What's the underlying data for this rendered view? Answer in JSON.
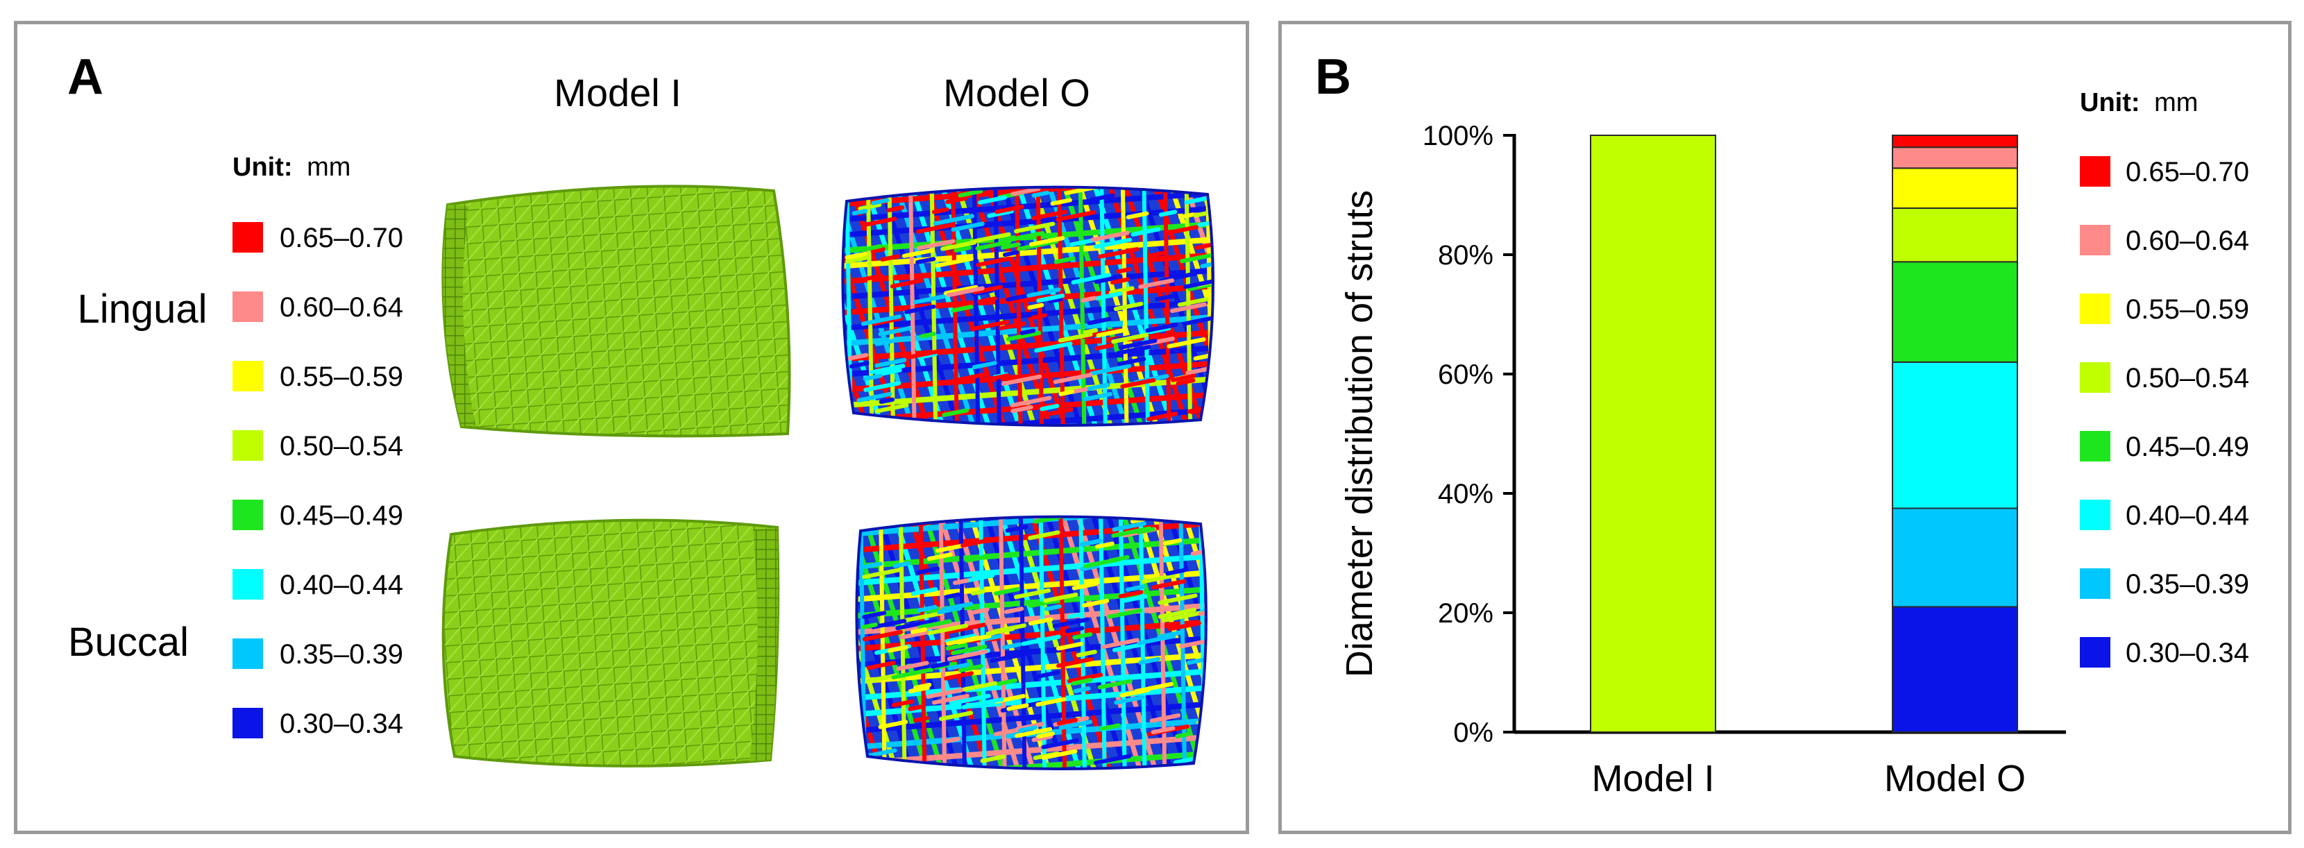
{
  "panel_a": {
    "letter": "A",
    "col_labels": [
      "Model I",
      "Model O"
    ],
    "row_labels": [
      "Lingual",
      "Buccal"
    ],
    "unit_label": "Unit:",
    "unit_value": "mm",
    "legend": [
      {
        "label": "0.65–0.70",
        "color": "#ff0000"
      },
      {
        "label": "0.60–0.64",
        "color": "#ff8a8a"
      },
      {
        "label": "0.55–0.59",
        "color": "#ffff00"
      },
      {
        "label": "0.50–0.54",
        "color": "#bfff00"
      },
      {
        "label": "0.45–0.49",
        "color": "#1ee61e"
      },
      {
        "label": "0.40–0.44",
        "color": "#00ffff"
      },
      {
        "label": "0.35–0.39",
        "color": "#00c8ff"
      },
      {
        "label": "0.30–0.34",
        "color": "#0a14e6"
      }
    ],
    "model_i_color": "#8ccf1a",
    "model_o_colors": [
      "#0a14e6",
      "#00c8ff",
      "#00ffff",
      "#1ee61e",
      "#bfff00",
      "#ffff00",
      "#ff8a8a",
      "#ff0000"
    ]
  },
  "panel_b": {
    "letter": "B",
    "unit_label": "Unit:",
    "unit_value": "mm"
  },
  "chart_data": {
    "type": "bar",
    "stacked": true,
    "categories": [
      "Model I",
      "Model O"
    ],
    "ylabel": "Diameter distribution of struts",
    "xlabel": "",
    "ylim": [
      0,
      100
    ],
    "yticks": [
      0,
      20,
      40,
      60,
      80,
      100
    ],
    "ytick_labels": [
      "0%",
      "20%",
      "40%",
      "60%",
      "80%",
      "100%"
    ],
    "legend_position": "right",
    "series": [
      {
        "name": "0.30–0.34",
        "color": "#0a14e6",
        "values": [
          0,
          21
        ]
      },
      {
        "name": "0.35–0.39",
        "color": "#00c8ff",
        "values": [
          0,
          16.5
        ]
      },
      {
        "name": "0.40–0.44",
        "color": "#00ffff",
        "values": [
          0,
          24.5
        ]
      },
      {
        "name": "0.45–0.49",
        "color": "#1ee61e",
        "values": [
          0,
          16.8
        ]
      },
      {
        "name": "0.50–0.54",
        "color": "#bfff00",
        "values": [
          100,
          9
        ]
      },
      {
        "name": "0.55–0.59",
        "color": "#ffff00",
        "values": [
          0,
          6.7
        ]
      },
      {
        "name": "0.60–0.64",
        "color": "#ff8a8a",
        "values": [
          0,
          3.5
        ]
      },
      {
        "name": "0.65–0.70",
        "color": "#ff0000",
        "values": [
          0,
          2
        ]
      }
    ]
  }
}
